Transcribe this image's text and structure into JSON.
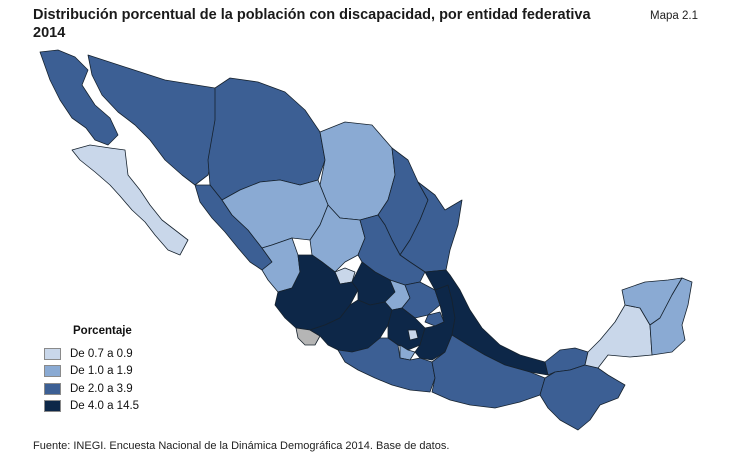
{
  "title": "Distribución porcentual de la población con discapacidad, por entidad federativa 2014",
  "map_code": "Mapa 2.1",
  "legend": {
    "title": "Porcentaje",
    "items": [
      {
        "label": "De 0.7 a 0.9",
        "color": "#c9d7ea"
      },
      {
        "label": "De 1.0 a 1.9",
        "color": "#8aaad3"
      },
      {
        "label": "De 2.0 a 3.9",
        "color": "#3c5f94"
      },
      {
        "label": "De 4.0 a 14.5",
        "color": "#0d2748"
      }
    ]
  },
  "no_data_color": "#b5b5b5",
  "source": "Fuente: INEGI. Encuesta Nacional de la Dinámica Demográfica 2014. Base de datos."
}
